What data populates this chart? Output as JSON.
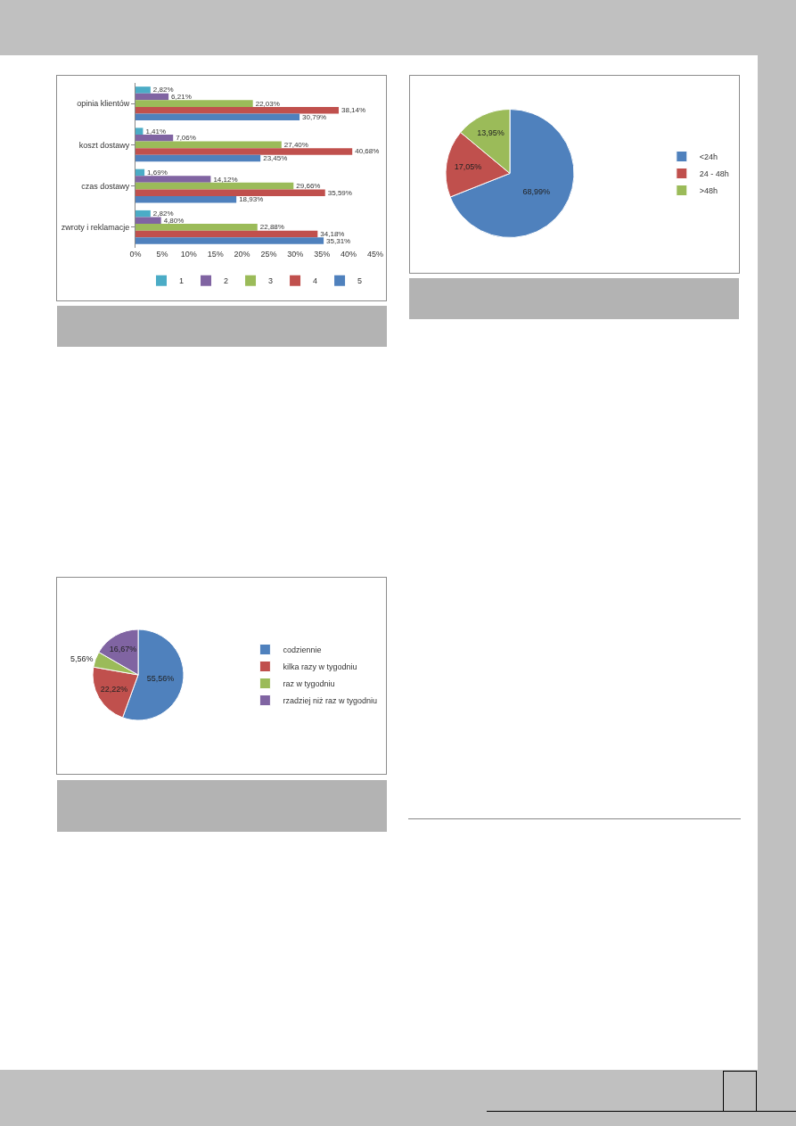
{
  "chart_data": [
    {
      "type": "bar",
      "orientation": "horizontal",
      "categories": [
        "opinia klientów",
        "koszt dostawy",
        "czas dostawy",
        "zwroty i reklamacje"
      ],
      "series": [
        {
          "name": "1",
          "color": "#4bacc6",
          "values": [
            2.82,
            1.41,
            1.69,
            2.82
          ],
          "value_labels": [
            "2,82%",
            "1,41%",
            "1,69%",
            "2,82%"
          ]
        },
        {
          "name": "2",
          "color": "#8064a2",
          "values": [
            6.21,
            7.06,
            14.12,
            4.8
          ],
          "value_labels": [
            "6,21%",
            "7,06%",
            "14,12%",
            "4,80%"
          ]
        },
        {
          "name": "3",
          "color": "#9bbb59",
          "values": [
            22.03,
            27.4,
            29.66,
            22.88
          ],
          "value_labels": [
            "22,03%",
            "27,40%",
            "29,66%",
            "22,88%"
          ]
        },
        {
          "name": "4",
          "color": "#c0504d",
          "values": [
            38.14,
            40.68,
            35.59,
            34.18
          ],
          "value_labels": [
            "38,14%",
            "40,68%",
            "35,59%",
            "34,18%"
          ]
        },
        {
          "name": "5",
          "color": "#4f81bd",
          "values": [
            30.79,
            23.45,
            18.93,
            35.31
          ],
          "value_labels": [
            "30,79%",
            "23,45%",
            "18,93%",
            "35,31%"
          ]
        }
      ],
      "xlim": [
        0,
        45
      ],
      "xticks": [
        {
          "value": 0,
          "label": "0%"
        },
        {
          "value": 5,
          "label": "5%"
        },
        {
          "value": 10,
          "label": "10%"
        },
        {
          "value": 15,
          "label": "15%"
        },
        {
          "value": 20,
          "label": "20%"
        },
        {
          "value": 25,
          "label": "25%"
        },
        {
          "value": 30,
          "label": "30%"
        },
        {
          "value": 35,
          "label": "35%"
        },
        {
          "value": 40,
          "label": "40%"
        },
        {
          "value": 45,
          "label": "45%"
        }
      ],
      "legend": "bottom",
      "grid": false
    },
    {
      "type": "pie",
      "categories": [
        "<24h",
        "24 - 48h",
        ">48h"
      ],
      "values": [
        68.99,
        17.05,
        13.95
      ],
      "value_labels": [
        "68,99%",
        "17,05%",
        "13,95%"
      ],
      "colors": [
        "#4f81bd",
        "#c0504d",
        "#9bbb59"
      ],
      "legend": "right"
    },
    {
      "type": "pie",
      "categories": [
        "codziennie",
        "kilka razy w tygodniu",
        "raz w tygodniu",
        "rzadziej niż raz w tygodniu"
      ],
      "values": [
        55.56,
        22.22,
        5.56,
        16.67
      ],
      "value_labels": [
        "55,56%",
        "22,22%",
        "5,56%",
        "16,67%"
      ],
      "colors": [
        "#4f81bd",
        "#c0504d",
        "#9bbb59",
        "#8064a2"
      ],
      "legend": "right"
    }
  ]
}
